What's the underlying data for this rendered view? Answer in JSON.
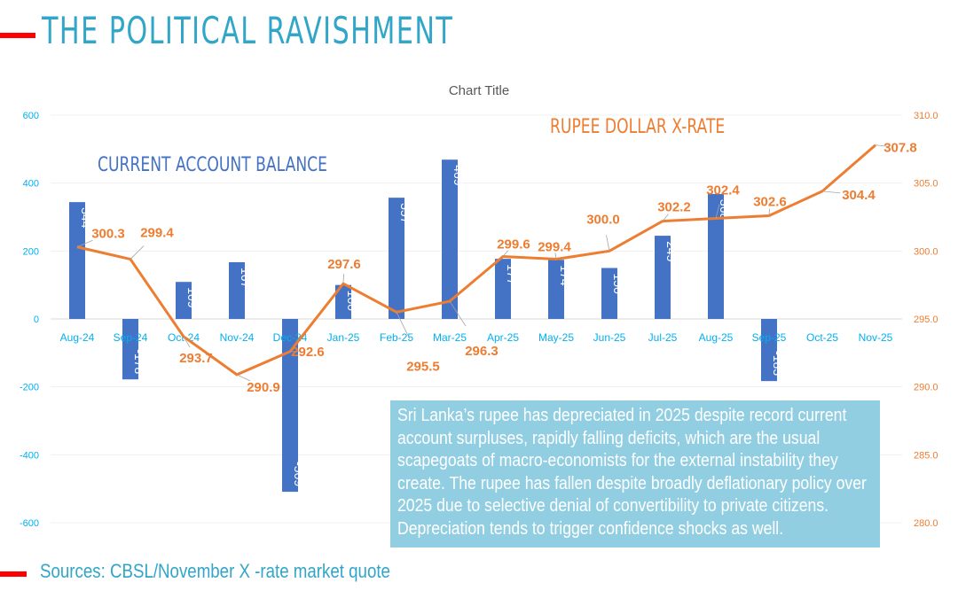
{
  "header": {
    "brand": "THE POLITICAL RAVISHMENT"
  },
  "footer": {
    "sources": "Sources: CBSL/November X -rate market quote"
  },
  "note": "Sri Lanka’s rupee has depreciated in 2025 despite record current account surpluses, rapidly falling deficits, which are the usual scapegoats of macro-economists for the external instability they create. The rupee has fallen despite broadly deflationary policy over 2025 due to selective denial of convertibility to private citizens. Depreciation tends to trigger confidence shocks as well.",
  "colors": {
    "bar": "#4472c4",
    "line": "#ed7d31",
    "left_axis": "#00b0f0",
    "right_axis": "#ed7d31",
    "brand": "#31a6c8",
    "note_bg": "#92cee2",
    "accent_red": "#ff0000"
  },
  "chart_data": {
    "type": "bar+line",
    "title": "Chart Title",
    "categories": [
      "Aug-24",
      "Sep-24",
      "Oct-24",
      "Nov-24",
      "Dec-24",
      "Jan-25",
      "Feb-25",
      "Mar-25",
      "Apr-25",
      "May-25",
      "Jun-25",
      "Jul-25",
      "Aug-25",
      "Sep-25",
      "Oct-25",
      "Nov-25"
    ],
    "series": [
      {
        "name": "CURRENT ACCOUNT BALANCE",
        "type": "bar",
        "axis": "left",
        "values": [
          344,
          -178,
          109,
          167,
          -509,
          100,
          357,
          469,
          177,
          174,
          150,
          245,
          368,
          -183,
          null,
          null
        ]
      },
      {
        "name": "RUPEE DOLLAR X-RATE",
        "type": "line",
        "axis": "right",
        "values": [
          300.3,
          299.4,
          293.7,
          290.9,
          292.6,
          297.6,
          295.5,
          296.3,
          299.6,
          299.4,
          300.0,
          302.2,
          302.4,
          302.6,
          304.4,
          307.8
        ]
      }
    ],
    "left_axis": {
      "ylim": [
        -600,
        600
      ],
      "ticks": [
        "600",
        "400",
        "200",
        "0",
        "-200",
        "-400",
        "-600"
      ]
    },
    "right_axis": {
      "ylim": [
        280,
        310
      ],
      "ticks": [
        "310.0",
        "305.0",
        "300.0",
        "295.0",
        "290.0",
        "285.0",
        "280.0"
      ]
    },
    "grid": true
  }
}
